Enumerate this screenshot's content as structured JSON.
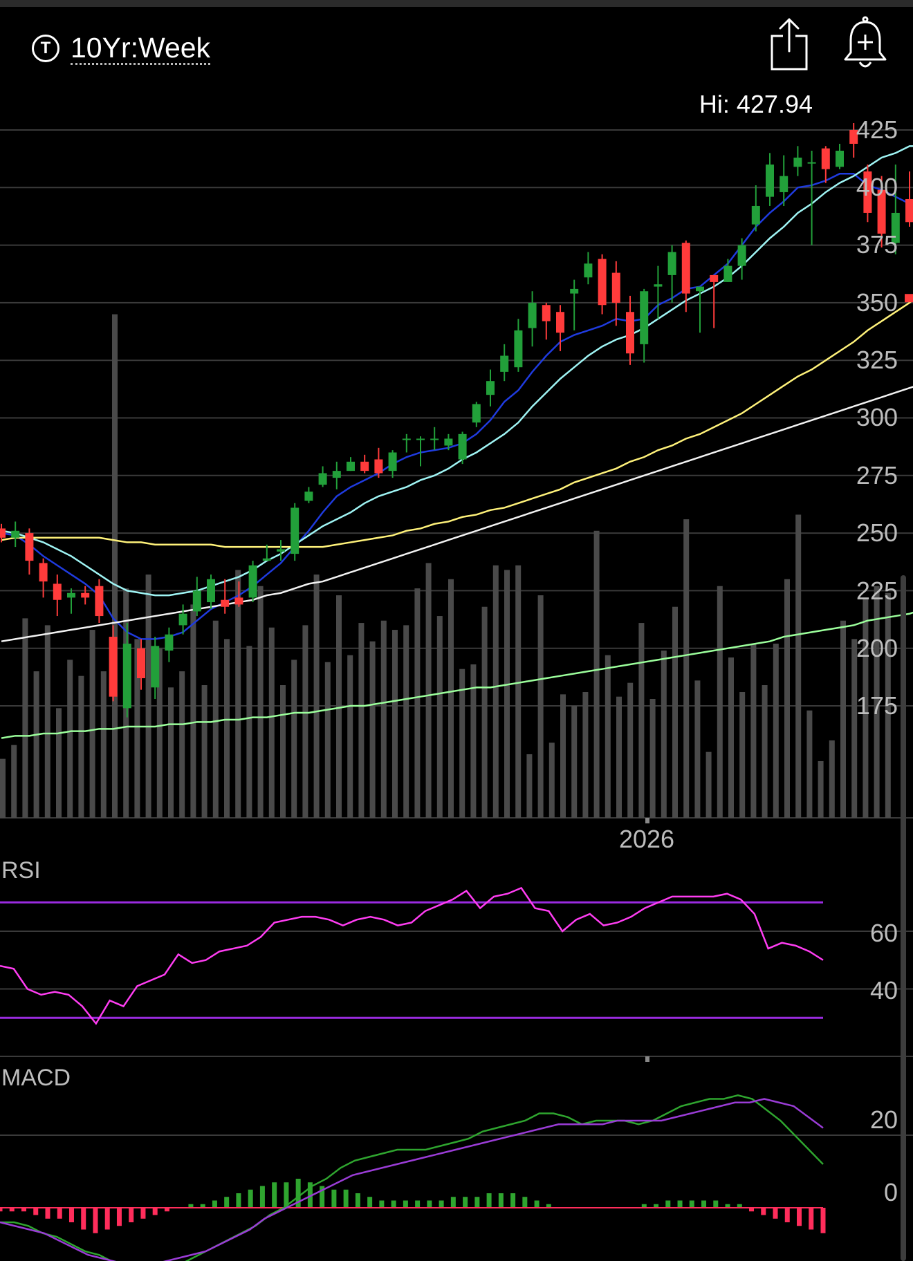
{
  "header": {
    "symbol_icon": "T",
    "symbol": "10Yr:Week",
    "share_icon": "share-icon",
    "alert_icon": "add-alert-bell-icon"
  },
  "price_panel": {
    "hi_label": "Hi: 427.94",
    "y_ticks": [
      "425",
      "400",
      "375",
      "350",
      "325",
      "300",
      "275",
      "250",
      "225",
      "200",
      "175"
    ],
    "x_label": "2026"
  },
  "rsi_panel": {
    "label": "RSI",
    "y_ticks": [
      "60",
      "40"
    ]
  },
  "macd_panel": {
    "label": "MACD",
    "y_ticks": [
      "20",
      "0"
    ]
  },
  "colors": {
    "up": "#22a03a",
    "down": "#ff3b3b",
    "ma_fast": "#1f3bdf",
    "ma_mid": "#9ff4f4",
    "ma_yellow": "#fff27a",
    "ma_white": "#f2f2f2",
    "ma_green": "#9cff9c",
    "rsi": "#ff3df2",
    "rsi_bands": "#9a2be0",
    "macd": "#2fa52f",
    "signal": "#9a3cd6",
    "hist_pos": "#2fa52f",
    "hist_neg": "#ff2d5b",
    "volume": "#4a4a4a",
    "grid": "#3a3a3a"
  },
  "chart_data": [
    {
      "type": "candlestick",
      "title": "10Yr:Week",
      "ylim": [
        150,
        430
      ],
      "y_ticks": [
        425,
        400,
        375,
        350,
        325,
        300,
        275,
        250,
        225,
        200,
        175
      ],
      "hi": 427.94,
      "x_label": "2026",
      "candles": [
        [
          252,
          248,
          254,
          246
        ],
        [
          248,
          251,
          255,
          244
        ],
        [
          250,
          238,
          252,
          232
        ],
        [
          237,
          229,
          239,
          222
        ],
        [
          228,
          221,
          232,
          214
        ],
        [
          222,
          224,
          226,
          215
        ],
        [
          224,
          222,
          227,
          219
        ],
        [
          227,
          214,
          230,
          211
        ],
        [
          205,
          179,
          210,
          177
        ],
        [
          174,
          202,
          211,
          170
        ],
        [
          200,
          187,
          204,
          182
        ],
        [
          183,
          201,
          205,
          178
        ],
        [
          199,
          206,
          209,
          194
        ],
        [
          210,
          215,
          219,
          206
        ],
        [
          216,
          225,
          231,
          214
        ],
        [
          220,
          230,
          232,
          217
        ],
        [
          221,
          218,
          230,
          215
        ],
        [
          222,
          219,
          229,
          218
        ],
        [
          222,
          236,
          238,
          220
        ],
        [
          238,
          239,
          245,
          238
        ],
        [
          242,
          243,
          247,
          238
        ],
        [
          241,
          261,
          263,
          238
        ],
        [
          264,
          268,
          270,
          263
        ],
        [
          271,
          276,
          279,
          270
        ],
        [
          274,
          277,
          281,
          269
        ],
        [
          277,
          281,
          283,
          277
        ],
        [
          281,
          277,
          284,
          276
        ],
        [
          282,
          276,
          287,
          274
        ],
        [
          277,
          285,
          286,
          274
        ],
        [
          291,
          291,
          293,
          285
        ],
        [
          291,
          291,
          292,
          279
        ],
        [
          291,
          291,
          296,
          286
        ],
        [
          288,
          291,
          293,
          286
        ],
        [
          282,
          293,
          294,
          280
        ],
        [
          298,
          306,
          307,
          296
        ],
        [
          310,
          316,
          321,
          305
        ],
        [
          320,
          327,
          332,
          316
        ],
        [
          322,
          338,
          343,
          320
        ],
        [
          339,
          350,
          355,
          331
        ],
        [
          349,
          342,
          350,
          334
        ],
        [
          346,
          337,
          349,
          329
        ],
        [
          354,
          356,
          360,
          338
        ],
        [
          361,
          367,
          372,
          358
        ],
        [
          369,
          349,
          371,
          345
        ],
        [
          363,
          350,
          368,
          340
        ],
        [
          346,
          328,
          353,
          323
        ],
        [
          332,
          355,
          356,
          324
        ],
        [
          357,
          358,
          366,
          343
        ],
        [
          362,
          372,
          375,
          350
        ],
        [
          376,
          354,
          377,
          346
        ],
        [
          355,
          357,
          357,
          337
        ],
        [
          362,
          359,
          362,
          339
        ],
        [
          359,
          366,
          369,
          359
        ],
        [
          366,
          375,
          378,
          360
        ],
        [
          384,
          392,
          401,
          381
        ],
        [
          396,
          410,
          415,
          392
        ],
        [
          398,
          405,
          414,
          392
        ],
        [
          409,
          413,
          418,
          405
        ],
        [
          411,
          411,
          416,
          375
        ],
        [
          417,
          408,
          418,
          402
        ],
        [
          409,
          416,
          419,
          408
        ],
        [
          425,
          419,
          428,
          413
        ],
        [
          407,
          389,
          410,
          385
        ],
        [
          399,
          380,
          405,
          374
        ],
        [
          376,
          389,
          410,
          371
        ],
        [
          395,
          385,
          407,
          383
        ],
        [
          399,
          381,
          406,
          375
        ],
        [
          381,
          352,
          382,
          351
        ]
      ],
      "volume": [
        152,
        158,
        213,
        190,
        210,
        174,
        195,
        188,
        208,
        190,
        345,
        226,
        204,
        232,
        200,
        183,
        190,
        219,
        184,
        212,
        204,
        234,
        201,
        227,
        209,
        184,
        195,
        210,
        232,
        194,
        223,
        197,
        211,
        203,
        212,
        208,
        210,
        226,
        237,
        214,
        230,
        191,
        193,
        218,
        236,
        234,
        236,
        154,
        223,
        159,
        180,
        175,
        181,
        251,
        197,
        179,
        185,
        211,
        178,
        199,
        218,
        256,
        186,
        155,
        227,
        196,
        181,
        202,
        184,
        202,
        230,
        258,
        173,
        151,
        160,
        212,
        204,
        222,
        227,
        224
      ],
      "ma_series": [
        {
          "color_key": "ma_fast",
          "values": [
            250,
            249,
            245,
            240,
            236,
            232,
            228,
            223,
            213,
            207,
            204,
            204,
            205,
            207,
            212,
            217,
            220,
            223,
            227,
            232,
            237,
            244,
            251,
            259,
            266,
            270,
            273,
            276,
            280,
            283,
            285,
            286,
            287,
            289,
            293,
            299,
            307,
            312,
            320,
            327,
            333,
            336,
            338,
            340,
            343,
            342,
            343,
            349,
            352,
            356,
            357,
            362,
            367,
            375,
            383,
            389,
            394,
            400,
            401,
            403,
            406,
            406,
            401,
            399,
            396,
            393,
            387,
            381
          ]
        },
        {
          "color_key": "ma_mid",
          "values": [
            251,
            250,
            248,
            246,
            243,
            240,
            236,
            232,
            228,
            225,
            224,
            223,
            223,
            224,
            225,
            227,
            229,
            231,
            234,
            238,
            241,
            245,
            249,
            253,
            256,
            259,
            263,
            266,
            268,
            270,
            273,
            275,
            278,
            282,
            285,
            289,
            293,
            298,
            305,
            311,
            317,
            322,
            327,
            331,
            334,
            336,
            339,
            343,
            347,
            351,
            354,
            357,
            361,
            366,
            372,
            378,
            383,
            389,
            393,
            398,
            402,
            405,
            409,
            413,
            415,
            418,
            418,
            417
          ]
        },
        {
          "color_key": "ma_yellow",
          "values": [
            247,
            248,
            248,
            248,
            248,
            248,
            248,
            248,
            247,
            246,
            246,
            245,
            245,
            245,
            245,
            245,
            244,
            244,
            244,
            244,
            244,
            244,
            244,
            244,
            245,
            246,
            247,
            248,
            249,
            251,
            252,
            254,
            255,
            257,
            258,
            260,
            261,
            263,
            265,
            267,
            269,
            272,
            274,
            276,
            278,
            281,
            283,
            286,
            288,
            291,
            293,
            296,
            299,
            302,
            306,
            310,
            314,
            318,
            321,
            325,
            329,
            333,
            338,
            342,
            346,
            350,
            355,
            359
          ]
        },
        {
          "color_key": "ma_white",
          "values": [
            203,
            204,
            205,
            206,
            207,
            208,
            209,
            210,
            211,
            212,
            213,
            214,
            215,
            216,
            217,
            218,
            219,
            220,
            221,
            223,
            224,
            226,
            228,
            229,
            231,
            233,
            235,
            237,
            239,
            241,
            243,
            245,
            247,
            249,
            251,
            253,
            255,
            257,
            259,
            261,
            263,
            265,
            267,
            269,
            271,
            273,
            275,
            277,
            279,
            281,
            283,
            285,
            287,
            289,
            291,
            293,
            295,
            297,
            299,
            301,
            303,
            305,
            307,
            309,
            311,
            313,
            315,
            317
          ]
        },
        {
          "color_key": "ma_green",
          "values": [
            161,
            162,
            162,
            163,
            163,
            164,
            164,
            165,
            165,
            166,
            166,
            166,
            167,
            167,
            168,
            168,
            169,
            169,
            170,
            170,
            171,
            172,
            172,
            173,
            174,
            175,
            175,
            176,
            177,
            178,
            179,
            180,
            181,
            182,
            183,
            183,
            184,
            185,
            186,
            187,
            188,
            189,
            190,
            191,
            192,
            193,
            194,
            195,
            196,
            197,
            198,
            199,
            200,
            201,
            202,
            203,
            205,
            206,
            207,
            208,
            209,
            210,
            212,
            213,
            214,
            215,
            217,
            218
          ]
        }
      ]
    },
    {
      "type": "line",
      "title": "RSI",
      "ylim": [
        20,
        80
      ],
      "y_ticks": [
        60,
        40
      ],
      "bands": [
        70,
        30
      ],
      "values": [
        48,
        47,
        40,
        38,
        39,
        38,
        34,
        28,
        36,
        34,
        41,
        43,
        45,
        52,
        49,
        50,
        53,
        54,
        55,
        58,
        63,
        64,
        65,
        65,
        64,
        62,
        64,
        65,
        64,
        62,
        63,
        67,
        69,
        71,
        74,
        68,
        72,
        73,
        75,
        68,
        67,
        60,
        64,
        66,
        62,
        63,
        65,
        68,
        70,
        72,
        72,
        72,
        72,
        73,
        71,
        66,
        54,
        56,
        55,
        53,
        50
      ]
    },
    {
      "type": "line",
      "title": "MACD",
      "ylim": [
        -16,
        34
      ],
      "y_ticks": [
        20,
        0
      ],
      "series": [
        {
          "color_key": "macd",
          "values": [
            -4,
            -4,
            -5,
            -7,
            -8,
            -10,
            -12,
            -13,
            -15,
            -17,
            -18,
            -17,
            -16,
            -15,
            -13,
            -11,
            -9,
            -7,
            -5,
            -2,
            0,
            3,
            6,
            8,
            11,
            13,
            14,
            15,
            16,
            16,
            16,
            17,
            18,
            19,
            21,
            22,
            23,
            24,
            26,
            26,
            25,
            23,
            24,
            24,
            24,
            23,
            24,
            26,
            28,
            29,
            30,
            30,
            31,
            30,
            27,
            24,
            20,
            16,
            12
          ]
        },
        {
          "color_key": "signal",
          "values": [
            -4,
            -5,
            -6,
            -7,
            -9,
            -11,
            -13,
            -14,
            -15,
            -15,
            -15,
            -15,
            -14,
            -13,
            -12,
            -10,
            -8,
            -6,
            -3,
            -1,
            1,
            3,
            5,
            7,
            9,
            10,
            11,
            12,
            13,
            14,
            15,
            16,
            17,
            18,
            19,
            20,
            21,
            22,
            23,
            23,
            23,
            23,
            24,
            24,
            24,
            24,
            25,
            26,
            27,
            28,
            29,
            29,
            30,
            29,
            28,
            25,
            22
          ]
        }
      ],
      "histogram": [
        -1,
        -1,
        -1,
        -2,
        -3,
        -3,
        -4,
        -6,
        -7,
        -6,
        -5,
        -4,
        -3,
        -2,
        -1,
        0,
        1,
        1,
        2,
        3,
        4,
        5,
        6,
        7,
        7,
        8,
        7,
        6,
        5,
        5,
        4,
        3,
        2,
        2,
        2,
        2,
        2,
        2,
        3,
        3,
        3,
        4,
        4,
        4,
        3,
        2,
        1,
        0,
        0,
        0,
        0,
        0,
        0,
        0,
        1,
        1,
        2,
        2,
        2,
        2,
        2,
        1,
        1,
        -1,
        -2,
        -3,
        -4,
        -5,
        -6,
        -7
      ]
    }
  ]
}
